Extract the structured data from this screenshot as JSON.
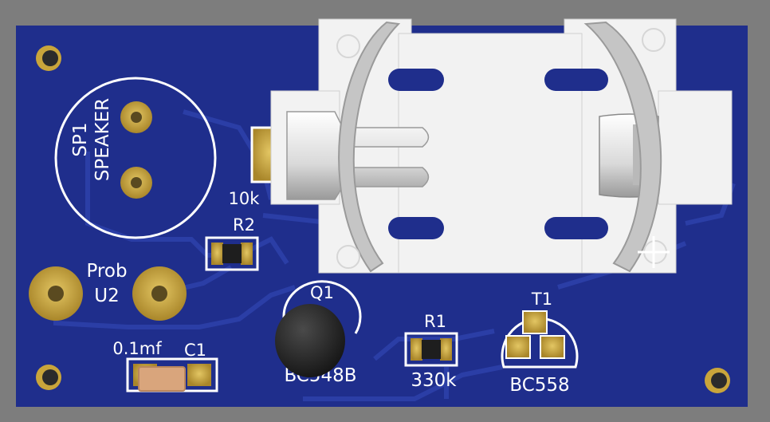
{
  "board": {
    "colors": {
      "background": "#7d7d7d",
      "pcb": "#1f2e8c",
      "trace": "#2b3ea6",
      "silkscreen": "#ffffff",
      "pad": "#c9a53b",
      "holder": "#f2f2f2"
    }
  },
  "components": {
    "speaker": {
      "ref": "SP1",
      "name": "SPEAKER"
    },
    "probe": {
      "ref": "U2",
      "name": "Prob"
    },
    "r2": {
      "ref": "R2",
      "value": "10k"
    },
    "c1": {
      "ref": "C1",
      "value": "0.1mf"
    },
    "q1": {
      "ref": "Q1",
      "value": "BC548B"
    },
    "r1": {
      "ref": "R1",
      "value": "330k"
    },
    "t1": {
      "ref": "T1",
      "value": "BC558"
    }
  }
}
